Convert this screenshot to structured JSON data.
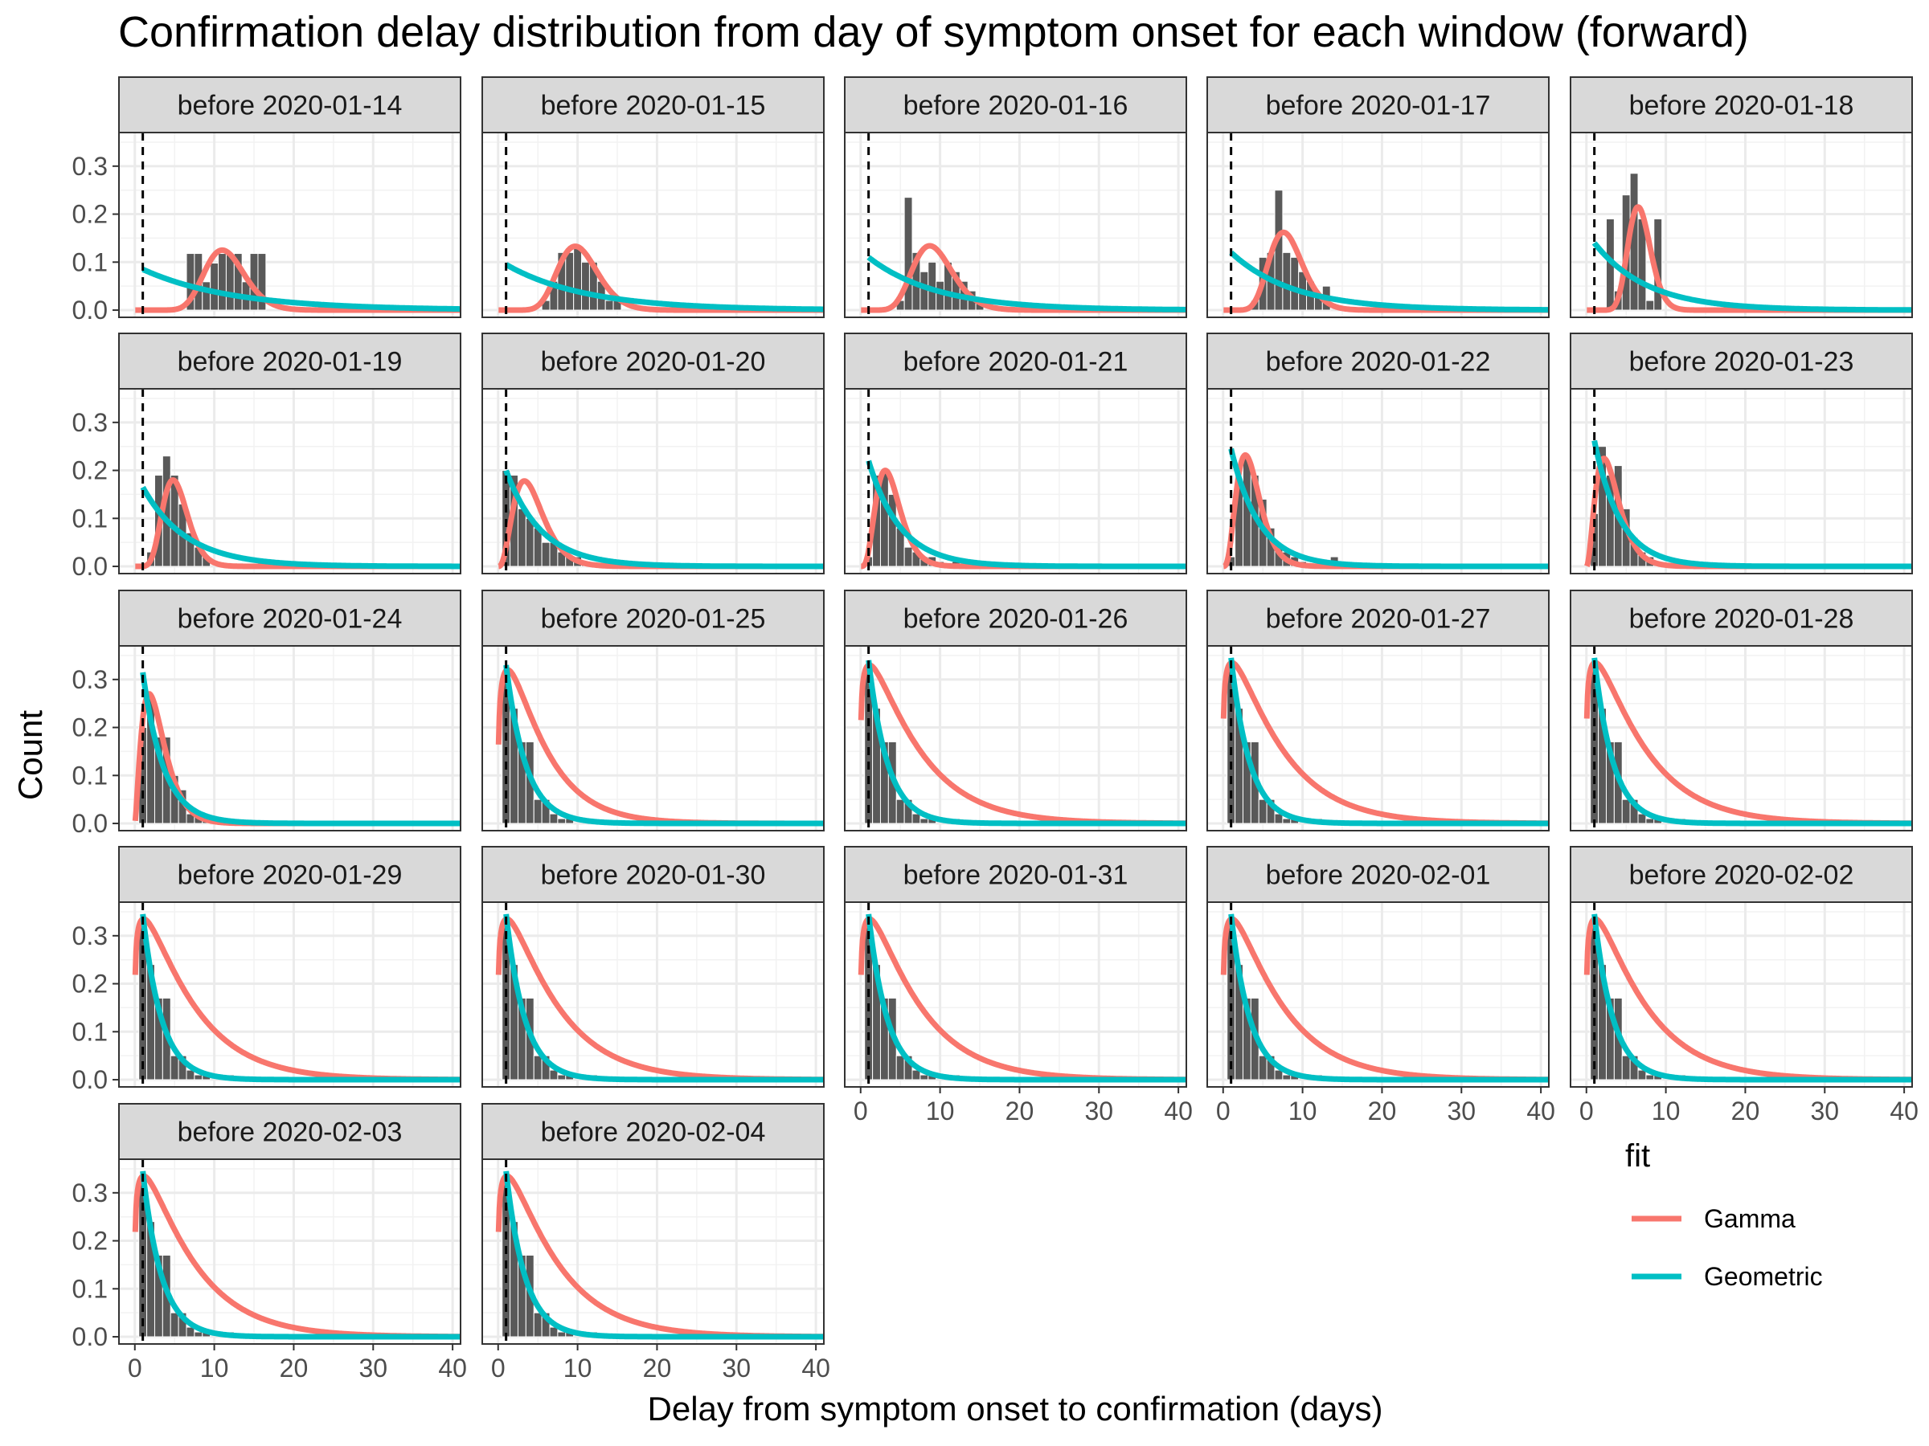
{
  "chart_data": {
    "type": "histogram_facets_with_fitted_lines",
    "title": "Confirmation delay distribution from day of symptom onset for each window (forward)",
    "xlabel": "Delay from symptom onset to confirmation (days)",
    "ylabel": "Count",
    "xlim": [
      -2,
      41
    ],
    "ylim": [
      -0.015,
      0.37
    ],
    "x_ticks": [
      0,
      10,
      20,
      30,
      40
    ],
    "x_tick_labels": [
      "0",
      "10",
      "20",
      "30",
      "40"
    ],
    "y_ticks": [
      0.0,
      0.1,
      0.2,
      0.3
    ],
    "y_tick_labels": [
      "0.0",
      "0.1",
      "0.2",
      "0.3"
    ],
    "vline_x": 1,
    "grid": true,
    "legend": {
      "title": "fit",
      "position": "right",
      "items": [
        {
          "label": "Gamma",
          "color": "#F8766D"
        },
        {
          "label": "Geometric",
          "color": "#00BFC4"
        }
      ]
    },
    "bar_color": "#595959",
    "series": [
      {
        "name": "Gamma",
        "color": "#F8766D"
      },
      {
        "name": "Geometric",
        "color": "#00BFC4"
      }
    ],
    "facets": [
      {
        "label": "before 2020-01-14",
        "bars": [
          [
            7,
            0.118
          ],
          [
            8,
            0.118
          ],
          [
            9,
            0.059
          ],
          [
            10,
            0.098
          ],
          [
            11,
            0.118
          ],
          [
            12,
            0.118
          ],
          [
            13,
            0.118
          ],
          [
            14,
            0.059
          ],
          [
            15,
            0.118
          ],
          [
            16,
            0.118
          ]
        ],
        "gamma": {
          "shape": 20,
          "mode": 11,
          "peak": 0.125
        },
        "geometric": {
          "p": 0.085
        }
      },
      {
        "label": "before 2020-01-15",
        "bars": [
          [
            6,
            0.02
          ],
          [
            7,
            0.06
          ],
          [
            8,
            0.12
          ],
          [
            9,
            0.12
          ],
          [
            10,
            0.135
          ],
          [
            11,
            0.1
          ],
          [
            12,
            0.1
          ],
          [
            13,
            0.06
          ],
          [
            14,
            0.02
          ],
          [
            15,
            0.02
          ]
        ],
        "gamma": {
          "shape": 16,
          "mode": 9.7,
          "peak": 0.133
        },
        "geometric": {
          "p": 0.095
        }
      },
      {
        "label": "before 2020-01-16",
        "bars": [
          [
            5,
            0.02
          ],
          [
            6,
            0.235
          ],
          [
            7,
            0.12
          ],
          [
            8,
            0.08
          ],
          [
            9,
            0.1
          ],
          [
            10,
            0.06
          ],
          [
            11,
            0.1
          ],
          [
            12,
            0.08
          ],
          [
            13,
            0.06
          ],
          [
            14,
            0.04
          ],
          [
            15,
            0.02
          ]
        ],
        "gamma": {
          "shape": 13,
          "mode": 8.7,
          "peak": 0.134
        },
        "geometric": {
          "p": 0.11
        }
      },
      {
        "label": "before 2020-01-17",
        "bars": [
          [
            4,
            0.02
          ],
          [
            5,
            0.11
          ],
          [
            6,
            0.12
          ],
          [
            7,
            0.25
          ],
          [
            8,
            0.12
          ],
          [
            9,
            0.11
          ],
          [
            10,
            0.08
          ],
          [
            11,
            0.06
          ],
          [
            12,
            0.03
          ],
          [
            13,
            0.05
          ]
        ],
        "gamma": {
          "shape": 14,
          "mode": 7.6,
          "peak": 0.162
        },
        "geometric": {
          "p": 0.12
        }
      },
      {
        "label": "before 2020-01-18",
        "bars": [
          [
            3,
            0.19
          ],
          [
            4,
            0.04
          ],
          [
            5,
            0.24
          ],
          [
            6,
            0.285
          ],
          [
            7,
            0.19
          ],
          [
            8,
            0.02
          ],
          [
            9,
            0.19
          ]
        ],
        "gamma": {
          "shape": 22,
          "mode": 6.5,
          "peak": 0.215
        },
        "geometric": {
          "p": 0.14
        }
      },
      {
        "label": "before 2020-01-19",
        "bars": [
          [
            2,
            0.03
          ],
          [
            3,
            0.19
          ],
          [
            4,
            0.23
          ],
          [
            5,
            0.19
          ],
          [
            6,
            0.13
          ],
          [
            7,
            0.07
          ],
          [
            8,
            0.04
          ],
          [
            9,
            0.02
          ]
        ],
        "gamma": {
          "shape": 10,
          "mode": 4.8,
          "peak": 0.18
        },
        "geometric": {
          "p": 0.165
        }
      },
      {
        "label": "before 2020-01-20",
        "bars": [
          [
            1,
            0.2
          ],
          [
            2,
            0.19
          ],
          [
            3,
            0.12
          ],
          [
            4,
            0.1
          ],
          [
            5,
            0.08
          ],
          [
            6,
            0.05
          ],
          [
            7,
            0.05
          ],
          [
            8,
            0.03
          ],
          [
            9,
            0.02
          ],
          [
            10,
            0.02
          ],
          [
            11,
            0.01
          ]
        ],
        "gamma": {
          "shape": 4,
          "mode": 3.3,
          "peak": 0.178
        },
        "geometric": {
          "p": 0.2
        }
      },
      {
        "label": "before 2020-01-21",
        "bars": [
          [
            1,
            0.02
          ],
          [
            2,
            0.19
          ],
          [
            3,
            0.2
          ],
          [
            4,
            0.15
          ],
          [
            5,
            0.08
          ],
          [
            6,
            0.04
          ],
          [
            7,
            0.03
          ],
          [
            8,
            0.02
          ],
          [
            9,
            0.02
          ],
          [
            10,
            0.01
          ],
          [
            12,
            0.01
          ],
          [
            14,
            0.01
          ]
        ],
        "gamma": {
          "shape": 5,
          "mode": 3.1,
          "peak": 0.2
        },
        "geometric": {
          "p": 0.22
        }
      },
      {
        "label": "before 2020-01-22",
        "bars": [
          [
            1,
            0.02
          ],
          [
            2,
            0.18
          ],
          [
            3,
            0.23
          ],
          [
            4,
            0.19
          ],
          [
            5,
            0.14
          ],
          [
            6,
            0.08
          ],
          [
            7,
            0.04
          ],
          [
            8,
            0.03
          ],
          [
            9,
            0.02
          ],
          [
            10,
            0.01
          ],
          [
            14,
            0.02
          ]
        ],
        "gamma": {
          "shape": 4.5,
          "mode": 2.8,
          "peak": 0.232
        },
        "geometric": {
          "p": 0.245
        }
      },
      {
        "label": "before 2020-01-23",
        "bars": [
          [
            1,
            0.11
          ],
          [
            2,
            0.25
          ],
          [
            3,
            0.19
          ],
          [
            4,
            0.21
          ],
          [
            5,
            0.12
          ],
          [
            6,
            0.06
          ],
          [
            7,
            0.03
          ],
          [
            8,
            0.02
          ],
          [
            9,
            0.01
          ],
          [
            13,
            0.01
          ]
        ],
        "gamma": {
          "shape": 3.2,
          "mode": 2.2,
          "peak": 0.225
        },
        "geometric": {
          "p": 0.262
        }
      },
      {
        "label": "before 2020-01-24",
        "bars": [
          [
            1,
            0.2
          ],
          [
            2,
            0.26
          ],
          [
            3,
            0.18
          ],
          [
            4,
            0.18
          ],
          [
            5,
            0.1
          ],
          [
            6,
            0.07
          ],
          [
            7,
            0.02
          ],
          [
            8,
            0.02
          ],
          [
            9,
            0.01
          ],
          [
            12,
            0.01
          ]
        ],
        "gamma": {
          "shape": 2.5,
          "mode": 1.8,
          "peak": 0.27
        },
        "geometric": {
          "p": 0.315
        }
      },
      {
        "label": "before 2020-01-25",
        "bars": [
          [
            1,
            0.31
          ],
          [
            2,
            0.24
          ],
          [
            3,
            0.17
          ],
          [
            4,
            0.17
          ],
          [
            5,
            0.05
          ],
          [
            6,
            0.05
          ],
          [
            7,
            0.02
          ],
          [
            8,
            0.01
          ],
          [
            9,
            0.01
          ],
          [
            12,
            0.01
          ]
        ],
        "gamma": {
          "shape": 1.3,
          "mode": 1.2,
          "peak": 0.32
        },
        "geometric": {
          "p": 0.33
        }
      },
      {
        "label": "before 2020-01-26",
        "bars": [
          [
            1,
            0.32
          ],
          [
            2,
            0.24
          ],
          [
            3,
            0.17
          ],
          [
            4,
            0.17
          ],
          [
            5,
            0.05
          ],
          [
            6,
            0.05
          ],
          [
            7,
            0.02
          ],
          [
            8,
            0.01
          ],
          [
            9,
            0.01
          ],
          [
            12,
            0.01
          ]
        ],
        "gamma": {
          "shape": 1.2,
          "mode": 1.1,
          "peak": 0.33
        },
        "geometric": {
          "p": 0.34
        }
      },
      {
        "label": "before 2020-01-27",
        "bars": [
          [
            1,
            0.32
          ],
          [
            2,
            0.24
          ],
          [
            3,
            0.17
          ],
          [
            4,
            0.17
          ],
          [
            5,
            0.05
          ],
          [
            6,
            0.05
          ],
          [
            7,
            0.02
          ],
          [
            8,
            0.01
          ],
          [
            9,
            0.01
          ],
          [
            12,
            0.01
          ]
        ],
        "gamma": {
          "shape": 1.2,
          "mode": 1.1,
          "peak": 0.335
        },
        "geometric": {
          "p": 0.345
        }
      },
      {
        "label": "before 2020-01-28",
        "bars": [
          [
            1,
            0.32
          ],
          [
            2,
            0.24
          ],
          [
            3,
            0.17
          ],
          [
            4,
            0.17
          ],
          [
            5,
            0.05
          ],
          [
            6,
            0.05
          ],
          [
            7,
            0.02
          ],
          [
            8,
            0.01
          ],
          [
            9,
            0.01
          ],
          [
            12,
            0.01
          ]
        ],
        "gamma": {
          "shape": 1.2,
          "mode": 1.1,
          "peak": 0.335
        },
        "geometric": {
          "p": 0.345
        }
      },
      {
        "label": "before 2020-01-29",
        "bars": [
          [
            1,
            0.32
          ],
          [
            2,
            0.24
          ],
          [
            3,
            0.17
          ],
          [
            4,
            0.17
          ],
          [
            5,
            0.05
          ],
          [
            6,
            0.05
          ],
          [
            7,
            0.02
          ],
          [
            8,
            0.01
          ],
          [
            9,
            0.01
          ],
          [
            12,
            0.01
          ]
        ],
        "gamma": {
          "shape": 1.2,
          "mode": 1.1,
          "peak": 0.335
        },
        "geometric": {
          "p": 0.345
        }
      },
      {
        "label": "before 2020-01-30",
        "bars": [
          [
            1,
            0.32
          ],
          [
            2,
            0.24
          ],
          [
            3,
            0.17
          ],
          [
            4,
            0.17
          ],
          [
            5,
            0.05
          ],
          [
            6,
            0.05
          ],
          [
            7,
            0.02
          ],
          [
            8,
            0.01
          ],
          [
            9,
            0.01
          ],
          [
            12,
            0.01
          ]
        ],
        "gamma": {
          "shape": 1.2,
          "mode": 1.1,
          "peak": 0.335
        },
        "geometric": {
          "p": 0.345
        }
      },
      {
        "label": "before 2020-01-31",
        "bars": [
          [
            1,
            0.32
          ],
          [
            2,
            0.24
          ],
          [
            3,
            0.17
          ],
          [
            4,
            0.17
          ],
          [
            5,
            0.05
          ],
          [
            6,
            0.05
          ],
          [
            7,
            0.02
          ],
          [
            8,
            0.01
          ],
          [
            9,
            0.01
          ],
          [
            12,
            0.01
          ]
        ],
        "gamma": {
          "shape": 1.2,
          "mode": 1.1,
          "peak": 0.335
        },
        "geometric": {
          "p": 0.345
        }
      },
      {
        "label": "before 2020-02-01",
        "bars": [
          [
            1,
            0.32
          ],
          [
            2,
            0.24
          ],
          [
            3,
            0.17
          ],
          [
            4,
            0.17
          ],
          [
            5,
            0.05
          ],
          [
            6,
            0.05
          ],
          [
            7,
            0.02
          ],
          [
            8,
            0.01
          ],
          [
            9,
            0.01
          ],
          [
            12,
            0.01
          ]
        ],
        "gamma": {
          "shape": 1.2,
          "mode": 1.1,
          "peak": 0.335
        },
        "geometric": {
          "p": 0.345
        }
      },
      {
        "label": "before 2020-02-02",
        "bars": [
          [
            1,
            0.32
          ],
          [
            2,
            0.24
          ],
          [
            3,
            0.17
          ],
          [
            4,
            0.17
          ],
          [
            5,
            0.05
          ],
          [
            6,
            0.05
          ],
          [
            7,
            0.02
          ],
          [
            8,
            0.01
          ],
          [
            9,
            0.01
          ],
          [
            12,
            0.01
          ]
        ],
        "gamma": {
          "shape": 1.2,
          "mode": 1.1,
          "peak": 0.335
        },
        "geometric": {
          "p": 0.345
        }
      },
      {
        "label": "before 2020-02-03",
        "bars": [
          [
            1,
            0.32
          ],
          [
            2,
            0.24
          ],
          [
            3,
            0.17
          ],
          [
            4,
            0.17
          ],
          [
            5,
            0.05
          ],
          [
            6,
            0.05
          ],
          [
            7,
            0.02
          ],
          [
            8,
            0.01
          ],
          [
            9,
            0.01
          ],
          [
            12,
            0.01
          ]
        ],
        "gamma": {
          "shape": 1.2,
          "mode": 1.1,
          "peak": 0.335
        },
        "geometric": {
          "p": 0.345
        }
      },
      {
        "label": "before 2020-02-04",
        "bars": [
          [
            1,
            0.32
          ],
          [
            2,
            0.24
          ],
          [
            3,
            0.17
          ],
          [
            4,
            0.17
          ],
          [
            5,
            0.05
          ],
          [
            6,
            0.05
          ],
          [
            7,
            0.02
          ],
          [
            8,
            0.01
          ],
          [
            9,
            0.01
          ],
          [
            12,
            0.01
          ]
        ],
        "gamma": {
          "shape": 1.2,
          "mode": 1.1,
          "peak": 0.335
        },
        "geometric": {
          "p": 0.345
        }
      }
    ]
  }
}
